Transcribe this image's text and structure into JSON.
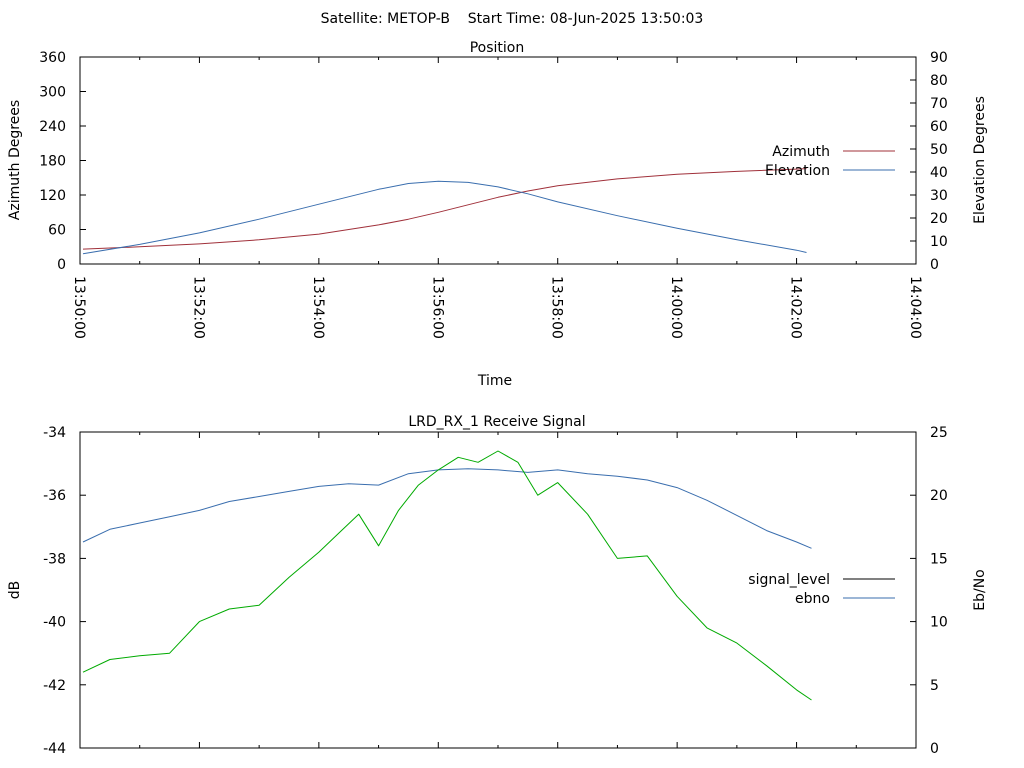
{
  "header": {
    "title": "Satellite: METOP-B    Start Time: 08-Jun-2025 13:50:03"
  },
  "chart_data": [
    {
      "type": "line",
      "title": "Position",
      "xlabel": "Time",
      "ylabel": "Azimuth Degrees",
      "y2label": "Elevation Degrees",
      "x_ticks": [
        "13:50:00",
        "13:52:00",
        "13:54:00",
        "13:56:00",
        "13:58:00",
        "14:00:00",
        "14:02:00",
        "14:04:00"
      ],
      "xlim": [
        "13:50:00",
        "14:04:00"
      ],
      "ylim": [
        0,
        360
      ],
      "y_ticks": [
        0,
        60,
        120,
        180,
        240,
        300,
        360
      ],
      "y2lim": [
        0,
        90
      ],
      "y2_ticks": [
        0,
        10,
        20,
        30,
        40,
        50,
        60,
        70,
        80,
        90
      ],
      "grid": false,
      "legend": "right",
      "series": [
        {
          "name": "Azimuth",
          "axis": "y",
          "color": "#a0303a",
          "x": [
            "13:50:03",
            "13:51:00",
            "13:52:00",
            "13:53:00",
            "13:54:00",
            "13:55:00",
            "13:55:30",
            "13:56:00",
            "13:56:30",
            "13:57:00",
            "13:57:30",
            "13:58:00",
            "13:59:00",
            "14:00:00",
            "14:01:00",
            "14:02:00",
            "14:02:10"
          ],
          "values": [
            26,
            30,
            35,
            42,
            52,
            68,
            78,
            90,
            103,
            116,
            127,
            136,
            148,
            156,
            161,
            165,
            166
          ]
        },
        {
          "name": "Elevation",
          "axis": "y2",
          "color": "#3a6eae",
          "x": [
            "13:50:03",
            "13:51:00",
            "13:52:00",
            "13:53:00",
            "13:54:00",
            "13:55:00",
            "13:55:30",
            "13:56:00",
            "13:56:30",
            "13:57:00",
            "13:57:30",
            "13:58:00",
            "13:59:00",
            "14:00:00",
            "14:01:00",
            "14:02:00",
            "14:02:10"
          ],
          "values": [
            4.5,
            8.5,
            13.5,
            19.5,
            26,
            32.5,
            35,
            36,
            35.5,
            33.5,
            30.5,
            27,
            21,
            15.5,
            10.5,
            6,
            5
          ]
        }
      ]
    },
    {
      "type": "line",
      "title": "LRD_RX_1 Receive Signal",
      "ylabel": "dB",
      "y2label": "Eb/No",
      "xlim": [
        "13:50:00",
        "14:04:00"
      ],
      "ylim": [
        -44,
        -34
      ],
      "y_ticks": [
        -44,
        -42,
        -40,
        -38,
        -36,
        -34
      ],
      "y2lim": [
        0,
        25
      ],
      "y2_ticks": [
        0,
        5,
        10,
        15,
        20,
        25
      ],
      "grid": false,
      "legend": "right",
      "series": [
        {
          "name": "signal_level",
          "axis": "y",
          "color": "#000000",
          "x": [],
          "values": []
        },
        {
          "name": "ebno",
          "axis": "y2",
          "color": "#3a6eae",
          "x": [
            "13:50:03",
            "13:50:30",
            "13:51:00",
            "13:51:30",
            "13:52:00",
            "13:52:30",
            "13:53:00",
            "13:53:30",
            "13:54:00",
            "13:54:30",
            "13:55:00",
            "13:55:30",
            "13:56:00",
            "13:56:30",
            "13:57:00",
            "13:57:30",
            "13:58:00",
            "13:58:30",
            "13:59:00",
            "13:59:30",
            "14:00:00",
            "14:00:30",
            "14:01:00",
            "14:01:30",
            "14:02:00",
            "14:02:15"
          ],
          "values": [
            16.3,
            17.3,
            17.8,
            18.3,
            18.8,
            19.5,
            19.9,
            20.3,
            20.7,
            20.9,
            20.8,
            21.7,
            22.0,
            22.1,
            22.0,
            21.8,
            22.0,
            21.7,
            21.5,
            21.2,
            20.6,
            19.6,
            18.4,
            17.2,
            16.3,
            15.8
          ]
        },
        {
          "name": "",
          "axis": "y2",
          "color": "#00aa00",
          "x": [
            "13:50:03",
            "13:50:30",
            "13:51:00",
            "13:51:30",
            "13:52:00",
            "13:52:30",
            "13:53:00",
            "13:53:30",
            "13:54:00",
            "13:54:20",
            "13:54:40",
            "13:55:00",
            "13:55:20",
            "13:55:40",
            "13:56:00",
            "13:56:20",
            "13:56:40",
            "13:57:00",
            "13:57:20",
            "13:57:40",
            "13:58:00",
            "13:58:30",
            "13:59:00",
            "13:59:30",
            "14:00:00",
            "14:00:30",
            "14:01:00",
            "14:01:30",
            "14:02:00",
            "14:02:15"
          ],
          "values": [
            6.0,
            7.0,
            7.3,
            7.5,
            10.0,
            11.0,
            11.3,
            13.5,
            15.5,
            17.0,
            18.5,
            16.0,
            18.8,
            20.8,
            22.0,
            23.0,
            22.6,
            23.5,
            22.6,
            20.0,
            21.0,
            18.5,
            15.0,
            15.2,
            12.0,
            9.5,
            8.3,
            6.5,
            4.6,
            3.8
          ]
        }
      ]
    }
  ]
}
